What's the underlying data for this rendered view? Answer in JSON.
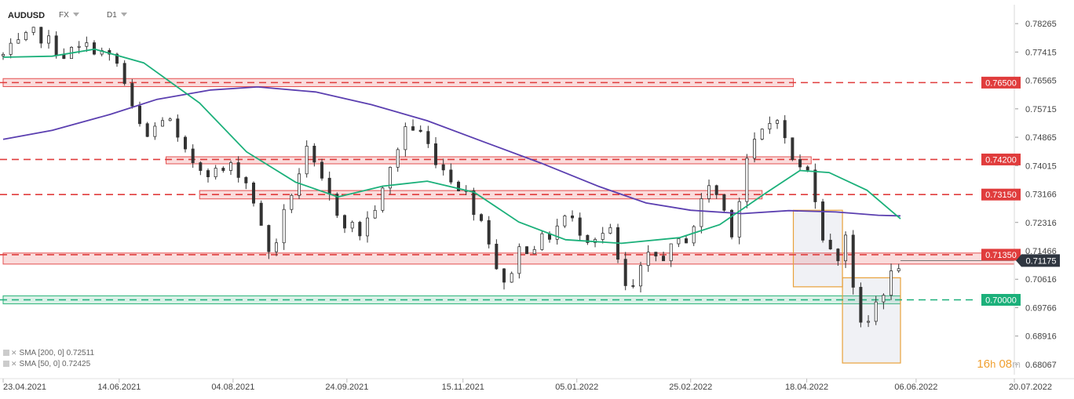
{
  "header": {
    "symbol": "AUDUSD",
    "market": "FX",
    "timeframe": "D1"
  },
  "indicators": [
    {
      "label": "SMA [200, 0]",
      "value": "0.72511",
      "color": "#5b3fb0"
    },
    {
      "label": "SMA [50, 0]",
      "value": "0.72425",
      "color": "#1bb07a"
    }
  ],
  "countdown": {
    "hours": "16",
    "h_unit": "h",
    "minutes": "08",
    "m_unit": "m"
  },
  "chart_data": {
    "type": "candlestick",
    "title": "",
    "xlabel": "",
    "ylabel": "",
    "ylim": [
      0.6776,
      0.7869
    ],
    "y_ticks": [
      "0.78265",
      "0.77415",
      "0.76565",
      "0.75715",
      "0.74865",
      "0.74015",
      "0.73166",
      "0.72316",
      "0.71466",
      "0.70616",
      "0.69766",
      "0.68916",
      "0.68067"
    ],
    "x_ticks": [
      "23.04.2021",
      "14.06.2021",
      "04.08.2021",
      "24.09.2021",
      "15.11.2021",
      "05.01.2022",
      "25.02.2022",
      "18.04.2022",
      "06.06.2022",
      "20.07.2022"
    ],
    "x_range": [
      "2021-04-23",
      "2022-07-20"
    ],
    "price_levels": [
      {
        "value": 0.765,
        "label": "0.76500",
        "color": "#e03c3c"
      },
      {
        "value": 0.742,
        "label": "0.74200",
        "color": "#e03c3c"
      },
      {
        "value": 0.7315,
        "label": "0.73150",
        "color": "#e03c3c"
      },
      {
        "value": 0.7135,
        "label": "0.71350",
        "color": "#e03c3c"
      },
      {
        "value": 0.7,
        "label": "0.70000",
        "color": "#1bb07a"
      }
    ],
    "current_price": {
      "value": 0.71175,
      "label": "0.71175",
      "color": "#2f3640"
    },
    "zones": [
      {
        "kind": "resistance",
        "low": 0.7638,
        "high": 0.7662,
        "from": "2021-04-23",
        "to": "2022-04-12"
      },
      {
        "kind": "resistance",
        "low": 0.7407,
        "high": 0.7428,
        "from": "2021-07-05",
        "to": "2022-04-20"
      },
      {
        "kind": "resistance",
        "low": 0.7302,
        "high": 0.7327,
        "from": "2021-07-20",
        "to": "2022-03-29"
      },
      {
        "kind": "resistance",
        "low": 0.7107,
        "high": 0.714,
        "from": "2021-04-23",
        "to": "2022-07-20"
      },
      {
        "kind": "support",
        "low": 0.6988,
        "high": 0.7012,
        "from": "2021-04-23",
        "to": "2022-05-30"
      }
    ],
    "boxes": [
      {
        "from": "2022-04-12",
        "to": "2022-05-04",
        "low": 0.7039,
        "high": 0.7268
      },
      {
        "from": "2022-05-04",
        "to": "2022-05-30",
        "low": 0.6811,
        "high": 0.7066
      }
    ],
    "sma200": [
      [
        "2021-04-23",
        0.748
      ],
      [
        "2021-05-15",
        0.7507
      ],
      [
        "2021-06-10",
        0.7555
      ],
      [
        "2021-07-01",
        0.76
      ],
      [
        "2021-07-25",
        0.7628
      ],
      [
        "2021-08-15",
        0.7637
      ],
      [
        "2021-09-10",
        0.7622
      ],
      [
        "2021-10-05",
        0.7584
      ],
      [
        "2021-10-30",
        0.7536
      ],
      [
        "2021-11-25",
        0.7471
      ],
      [
        "2021-12-20",
        0.7409
      ],
      [
        "2022-01-15",
        0.7339
      ],
      [
        "2022-02-05",
        0.729
      ],
      [
        "2022-02-25",
        0.7268
      ],
      [
        "2022-03-20",
        0.7258
      ],
      [
        "2022-04-10",
        0.7267
      ],
      [
        "2022-05-01",
        0.7263
      ],
      [
        "2022-05-20",
        0.7253
      ],
      [
        "2022-05-30",
        0.72511
      ]
    ],
    "sma50": [
      [
        "2021-04-23",
        0.7726
      ],
      [
        "2021-05-15",
        0.7729
      ],
      [
        "2021-06-03",
        0.775
      ],
      [
        "2021-06-25",
        0.7709
      ],
      [
        "2021-07-20",
        0.7589
      ],
      [
        "2021-08-10",
        0.7443
      ],
      [
        "2021-09-01",
        0.7352
      ],
      [
        "2021-09-20",
        0.7308
      ],
      [
        "2021-10-10",
        0.734
      ],
      [
        "2021-10-30",
        0.7355
      ],
      [
        "2021-11-20",
        0.7322
      ],
      [
        "2021-12-10",
        0.7233
      ],
      [
        "2021-12-31",
        0.718
      ],
      [
        "2022-01-25",
        0.7169
      ],
      [
        "2022-02-20",
        0.7186
      ],
      [
        "2022-03-10",
        0.7225
      ],
      [
        "2022-03-31",
        0.7321
      ],
      [
        "2022-04-15",
        0.7387
      ],
      [
        "2022-04-28",
        0.7381
      ],
      [
        "2022-05-15",
        0.7328
      ],
      [
        "2022-05-30",
        0.72425
      ]
    ],
    "price_path": [
      [
        "2021-04-23",
        0.773
      ],
      [
        "2021-05-08",
        0.78
      ],
      [
        "2021-05-20",
        0.7735
      ],
      [
        "2021-06-02",
        0.776
      ],
      [
        "2021-06-14",
        0.77
      ],
      [
        "2021-06-20",
        0.756
      ],
      [
        "2021-06-26",
        0.748
      ],
      [
        "2021-07-05",
        0.756
      ],
      [
        "2021-07-12",
        0.744
      ],
      [
        "2021-07-20",
        0.74
      ],
      [
        "2021-07-28",
        0.738
      ],
      [
        "2021-08-05",
        0.74
      ],
      [
        "2021-08-12",
        0.733
      ],
      [
        "2021-08-17",
        0.72
      ],
      [
        "2021-08-21",
        0.713
      ],
      [
        "2021-08-30",
        0.732
      ],
      [
        "2021-09-06",
        0.744
      ],
      [
        "2021-09-14",
        0.733
      ],
      [
        "2021-09-22",
        0.724
      ],
      [
        "2021-09-30",
        0.72
      ],
      [
        "2021-10-10",
        0.732
      ],
      [
        "2021-10-20",
        0.752
      ],
      [
        "2021-10-27",
        0.75
      ],
      [
        "2021-11-05",
        0.74
      ],
      [
        "2021-11-15",
        0.733
      ],
      [
        "2021-11-25",
        0.722
      ],
      [
        "2021-12-03",
        0.703
      ],
      [
        "2021-12-10",
        0.715
      ],
      [
        "2021-12-22",
        0.718
      ],
      [
        "2021-12-31",
        0.725
      ],
      [
        "2022-01-10",
        0.719
      ],
      [
        "2022-01-20",
        0.72
      ],
      [
        "2022-01-28",
        0.7
      ],
      [
        "2022-02-05",
        0.712
      ],
      [
        "2022-02-15",
        0.714
      ],
      [
        "2022-02-25",
        0.72
      ],
      [
        "2022-03-05",
        0.735
      ],
      [
        "2022-03-10",
        0.73
      ],
      [
        "2022-03-16",
        0.72
      ],
      [
        "2022-03-22",
        0.742
      ],
      [
        "2022-03-29",
        0.75
      ],
      [
        "2022-04-05",
        0.756
      ],
      [
        "2022-04-09",
        0.745
      ],
      [
        "2022-04-15",
        0.739
      ],
      [
        "2022-04-20",
        0.738
      ],
      [
        "2022-04-25",
        0.72
      ],
      [
        "2022-05-01",
        0.71
      ],
      [
        "2022-05-05",
        0.722
      ],
      [
        "2022-05-09",
        0.704
      ],
      [
        "2022-05-13",
        0.688
      ],
      [
        "2022-05-18",
        0.698
      ],
      [
        "2022-05-24",
        0.705
      ],
      [
        "2022-05-30",
        0.7118
      ]
    ],
    "candle_interval_days": 3.4
  }
}
